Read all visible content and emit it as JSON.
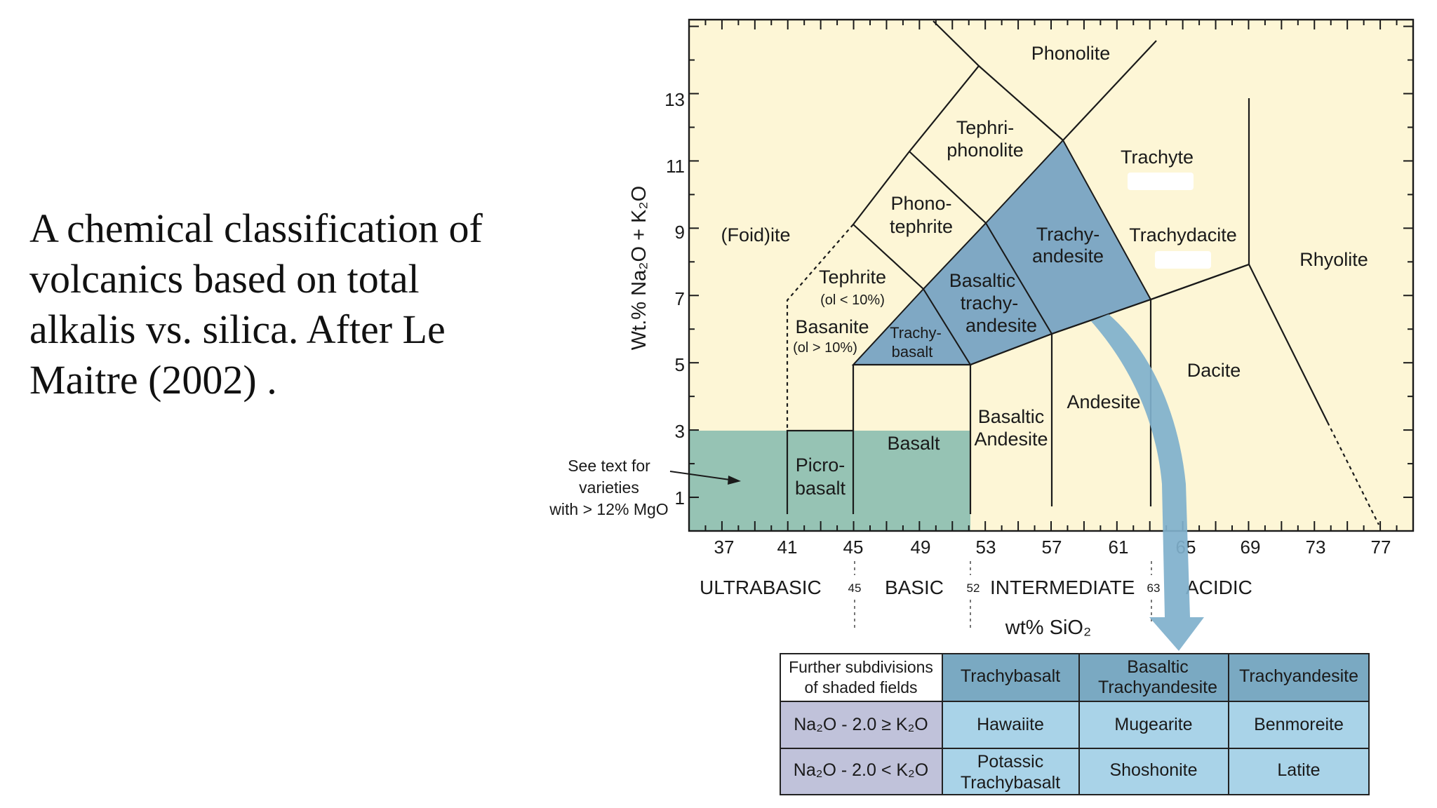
{
  "caption": "A chemical classification of volcanics based on total alkalis vs. silica. After Le Maitre (2002) .",
  "colors": {
    "background": "#fdf6d6",
    "shaded_field": "#7fa8c4",
    "mgo_region": "#96c3b4",
    "arrow": "#7fb0cc",
    "table_header": "#7aa9c2",
    "table_row_label": "#c0c2da",
    "table_cell": "#a9d3e8"
  },
  "axes": {
    "ylabel": "Wt.% Na₂O + K₂O",
    "xlabel": "wt% SiO₂",
    "x_range": [
      35,
      79
    ],
    "y_range": [
      0,
      15.2
    ],
    "x_tick_labels": [
      "37",
      "41",
      "45",
      "49",
      "53",
      "57",
      "61",
      "65",
      "69",
      "73",
      "77"
    ],
    "y_tick_labels": [
      "1",
      "3",
      "5",
      "7",
      "9",
      "11",
      "13"
    ]
  },
  "fields": {
    "phonolite": "Phonolite",
    "tephri_1": "Tephri-",
    "tephri_2": "phonolite",
    "trachyte": "Trachyte",
    "phono_1": "Phono-",
    "phono_2": "tephrite",
    "foidite": "(Foid)ite",
    "trachy_andesite_1": "Trachy-",
    "trachy_andesite_2": "andesite",
    "trachydacite": "Trachydacite",
    "rhyolite": "Rhyolite",
    "tephrite": "Tephrite",
    "tephrite_note": "(ol < 10%)",
    "basaltic_trachy_1": "Basaltic",
    "basaltic_trachy_2": "trachy-",
    "basaltic_trachy_3": "andesite",
    "basanite": "Basanite",
    "basanite_note": "(ol > 10%)",
    "trachybasalt_1": "Trachy-",
    "trachybasalt_2": "basalt",
    "dacite": "Dacite",
    "andesite": "Andesite",
    "basaltic_andesite_1": "Basaltic",
    "basaltic_andesite_2": "Andesite",
    "basalt": "Basalt",
    "picrobasalt_1": "Picro-",
    "picrobasalt_2": "basalt"
  },
  "note": {
    "line1": "See text for",
    "line2": "varieties",
    "line3": "with > 12% MgO"
  },
  "classes": {
    "ultrabasic": "ULTRABASIC",
    "basic": "BASIC",
    "intermediate": "INTERMEDIATE",
    "acidic": "ACIDIC",
    "b45": "45",
    "b52": "52",
    "b63": "63"
  },
  "table": {
    "header": {
      "label_1": "Further subdivisions",
      "label_2": "of shaded fields",
      "col1": "Trachybasalt",
      "col2_1": "Basaltic",
      "col2_2": "Trachyandesite",
      "col3": "Trachyandesite"
    },
    "rows": [
      {
        "label": "Na₂O - 2.0 ≥ K₂O",
        "col1": "Hawaiite",
        "col2": "Mugearite",
        "col3": "Benmoreite"
      },
      {
        "label": "Na₂O - 2.0 < K₂O",
        "col1_1": "Potassic",
        "col1_2": "Trachybasalt",
        "col2": "Shoshonite",
        "col3": "Latite"
      }
    ]
  }
}
